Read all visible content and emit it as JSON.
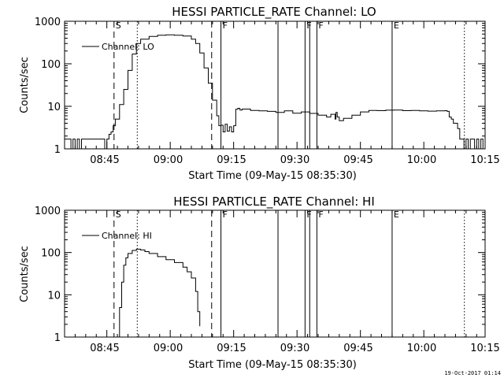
{
  "footer": {
    "timestamp": "19-Oct-2017 01:14"
  },
  "chart_data": [
    {
      "type": "line",
      "title": "HESSI PARTICLE_RATE Channel: LO",
      "xlabel": "Start Time (09-May-15 08:35:30)",
      "ylabel": "Counts/sec",
      "x_ticks": [
        "08:45",
        "09:00",
        "09:15",
        "09:30",
        "09:45",
        "10:00",
        "10:15"
      ],
      "y_ticks": [
        "1",
        "10",
        "100",
        "1000"
      ],
      "y_scale": "log",
      "x_unit": "minutes after 08:35:30",
      "xlim": [
        0,
        99.5
      ],
      "ylim": [
        1,
        1000
      ],
      "grid": false,
      "legend": "top-left",
      "series": [
        {
          "name": "Channel: LO",
          "x": [
            0,
            1,
            1.5,
            2,
            2.5,
            3,
            3.5,
            4,
            4.5,
            5,
            6,
            7,
            8,
            9,
            9.5,
            10,
            10.5,
            11,
            11.5,
            12,
            13,
            14,
            15,
            16,
            17,
            18,
            20,
            22,
            24,
            26,
            28,
            30,
            31,
            32,
            33,
            34,
            35,
            36,
            36.5,
            37,
            37.5,
            38,
            38.5,
            39,
            39.5,
            40,
            40.5,
            41,
            41.5,
            42,
            44,
            46,
            48,
            50,
            52,
            54,
            56,
            58,
            60,
            62,
            63,
            64,
            64.2,
            64.5,
            65,
            66,
            68,
            70,
            72,
            74,
            76,
            78,
            80,
            82,
            84,
            86,
            88,
            90,
            90.5,
            91,
            91.5,
            92,
            93,
            93.5,
            94,
            94.5,
            95,
            95.5,
            96,
            96.5,
            97,
            97.5,
            98,
            98.5,
            99
          ],
          "values": [
            1.7,
            1.7,
            1,
            1.7,
            1,
            1.7,
            1,
            1.7,
            1.7,
            1.7,
            1.7,
            1.7,
            1.7,
            1.7,
            1,
            1.7,
            2.2,
            2.5,
            3.5,
            5,
            11,
            25,
            70,
            170,
            300,
            380,
            440,
            470,
            480,
            470,
            450,
            380,
            300,
            180,
            80,
            35,
            14,
            6,
            3.5,
            3.6,
            2.5,
            3.8,
            2.6,
            3.3,
            2.5,
            3.5,
            8.5,
            9,
            8.2,
            8.6,
            8,
            7.8,
            7.6,
            7.2,
            7.8,
            6.9,
            7.4,
            6.8,
            6.2,
            5.6,
            6.5,
            5,
            7.2,
            5.6,
            4.6,
            5.2,
            6.2,
            7.4,
            8,
            7.9,
            8.1,
            8.2,
            7.9,
            8,
            7.8,
            7.7,
            7.8,
            7.9,
            7.6,
            5.6,
            5,
            4,
            3,
            1.7,
            1.7,
            1,
            1.7,
            1,
            1.7,
            1.7,
            1,
            1.7,
            1,
            1.7,
            1
          ]
        }
      ],
      "markers": [
        {
          "label": "S",
          "x": 11.7,
          "style": "dashed"
        },
        {
          "label": "",
          "x": 17.2,
          "style": "dotted"
        },
        {
          "label": "",
          "x": 34.8,
          "style": "dashed"
        },
        {
          "label": "F",
          "x": 37.0,
          "style": "solid"
        },
        {
          "label": "",
          "x": 50.5,
          "style": "solid"
        },
        {
          "label": "F",
          "x": 56.9,
          "style": "solid"
        },
        {
          "label": "",
          "x": 58.0,
          "style": "solid"
        },
        {
          "label": "F",
          "x": 59.7,
          "style": "solid"
        },
        {
          "label": "E",
          "x": 77.5,
          "style": "solid"
        },
        {
          "label": "",
          "x": 94.6,
          "style": "dotted"
        }
      ]
    },
    {
      "type": "line",
      "title": "HESSI PARTICLE_RATE Channel: HI",
      "xlabel": "Start Time (09-May-15 08:35:30)",
      "ylabel": "Counts/sec",
      "x_ticks": [
        "08:45",
        "09:00",
        "09:15",
        "09:30",
        "09:45",
        "10:00",
        "10:15"
      ],
      "y_ticks": [
        "1",
        "10",
        "100",
        "1000"
      ],
      "y_scale": "log",
      "x_unit": "minutes after 08:35:30",
      "xlim": [
        0,
        99.5
      ],
      "ylim": [
        1,
        1000
      ],
      "grid": false,
      "legend": "top-left",
      "series": [
        {
          "name": "Channel: HI",
          "x": [
            12.6,
            13,
            13.5,
            14,
            14.5,
            15,
            16,
            17,
            18,
            19,
            20,
            22,
            24,
            26,
            28,
            29,
            30,
            31,
            31.5,
            32
          ],
          "values": [
            1,
            5,
            20,
            50,
            75,
            95,
            112,
            120,
            115,
            105,
            95,
            80,
            68,
            58,
            45,
            35,
            25,
            12,
            4,
            1.8
          ]
        }
      ],
      "markers": [
        {
          "label": "S",
          "x": 11.7,
          "style": "dashed"
        },
        {
          "label": "",
          "x": 17.2,
          "style": "dotted"
        },
        {
          "label": "",
          "x": 34.8,
          "style": "dashed"
        },
        {
          "label": "F",
          "x": 37.0,
          "style": "solid"
        },
        {
          "label": "",
          "x": 50.5,
          "style": "solid"
        },
        {
          "label": "F",
          "x": 56.9,
          "style": "solid"
        },
        {
          "label": "",
          "x": 58.0,
          "style": "solid"
        },
        {
          "label": "F",
          "x": 59.7,
          "style": "solid"
        },
        {
          "label": "E",
          "x": 77.5,
          "style": "solid"
        },
        {
          "label": "",
          "x": 94.6,
          "style": "dotted"
        }
      ]
    }
  ]
}
